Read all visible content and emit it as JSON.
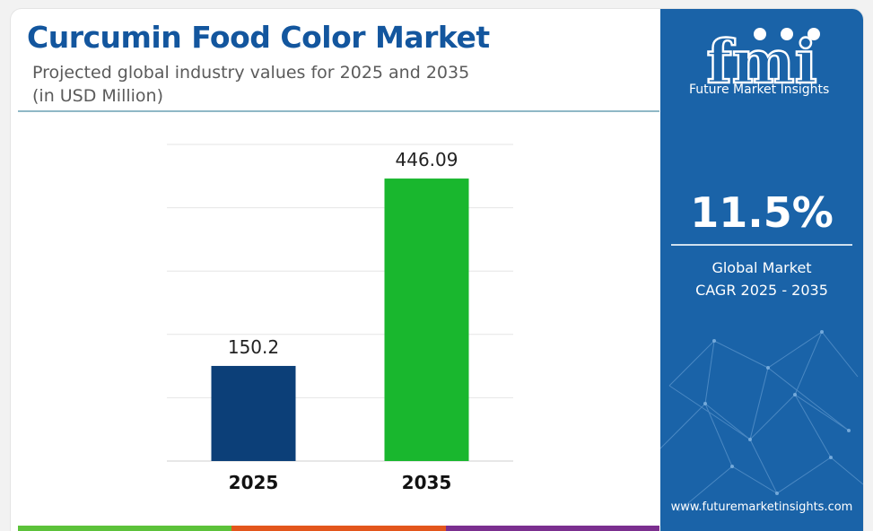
{
  "title": "Curcumin Food Color Market",
  "subtitle_line1": "Projected global industry values for 2025 and 2035",
  "subtitle_line2": "(in USD Million)",
  "chart_data": {
    "type": "bar",
    "categories": [
      "2025",
      "2035"
    ],
    "values": [
      150.2,
      446.09
    ],
    "value_labels": [
      "150.2",
      "446.09"
    ],
    "ylim": [
      0,
      500
    ],
    "grid": true,
    "xlabel": "",
    "ylabel": "",
    "colors": [
      "#0c3f78",
      "#19b72e"
    ]
  },
  "sidebar": {
    "logo_word": "fmi",
    "logo_subtitle": "Future Market Insights",
    "cagr_value": "11.5%",
    "cagr_label_line1": "Global Market",
    "cagr_label_line2": "CAGR 2025 - 2035",
    "website": "www.futuremarketinsights.com",
    "background_color": "#1a63a8"
  },
  "bottom_stripe_colors": [
    "#5cc23a",
    "#e3561c",
    "#7b2f8f"
  ]
}
